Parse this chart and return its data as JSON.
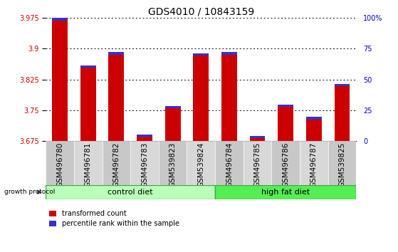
{
  "title": "GDS4010 / 10843159",
  "samples": [
    "GSM496780",
    "GSM496781",
    "GSM496782",
    "GSM496783",
    "GSM539823",
    "GSM539824",
    "GSM496784",
    "GSM496785",
    "GSM496786",
    "GSM496787",
    "GSM539825"
  ],
  "red_values": [
    3.968,
    3.853,
    3.885,
    3.685,
    3.755,
    3.883,
    3.885,
    3.682,
    3.758,
    3.728,
    3.808
  ],
  "blue_values": [
    0.006,
    0.006,
    0.006,
    0.006,
    0.006,
    0.006,
    0.006,
    0.005,
    0.006,
    0.006,
    0.006
  ],
  "baseline": 3.675,
  "ylim_left": [
    3.675,
    3.975
  ],
  "ylim_right": [
    0,
    100
  ],
  "yticks_left": [
    3.675,
    3.75,
    3.825,
    3.9,
    3.975
  ],
  "yticks_right": [
    0,
    25,
    50,
    75,
    100
  ],
  "ytick_labels_left": [
    "3.675",
    "3.75",
    "3.825",
    "3.9",
    "3.975"
  ],
  "ytick_labels_right": [
    "0",
    "25",
    "50",
    "75",
    "100%"
  ],
  "grid_values": [
    3.75,
    3.825,
    3.9,
    3.975
  ],
  "bar_color_red": "#cc0000",
  "bar_color_blue": "#3333cc",
  "control_diet_indices": [
    0,
    1,
    2,
    3,
    4,
    5
  ],
  "high_fat_diet_indices": [
    6,
    7,
    8,
    9,
    10
  ],
  "control_diet_label": "control diet",
  "high_fat_diet_label": "high fat diet",
  "growth_protocol_label": "growth protocol",
  "legend_red_label": "transformed count",
  "legend_blue_label": "percentile rank within the sample",
  "control_color": "#bbffbb",
  "high_fat_color": "#55ee55",
  "bar_width": 0.55,
  "left_axis_color": "#cc0000",
  "right_axis_color": "#0000cc",
  "title_fontsize": 10,
  "tick_fontsize": 7,
  "label_fontsize": 7.5,
  "diet_fontsize": 8,
  "legend_fontsize": 7
}
